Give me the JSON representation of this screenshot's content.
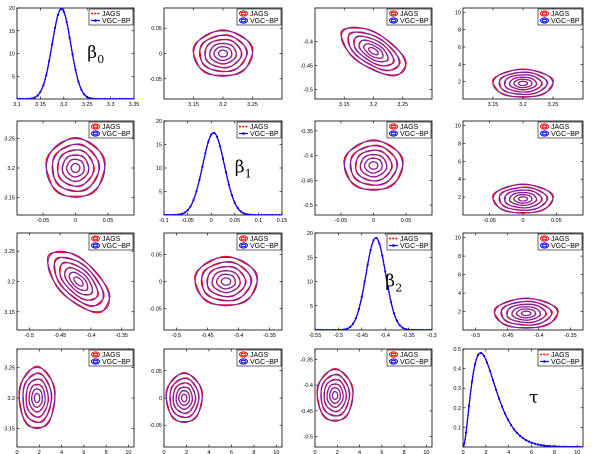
{
  "figure": {
    "legend_entries": [
      "JAGS",
      "VGC−BP"
    ],
    "series_colors": {
      "JAGS": "#ff0000",
      "VGC−BP": "#0000ff",
      "overlap": "#7a1fa8"
    },
    "diag_labels": [
      {
        "base": "β",
        "sub": "0"
      },
      {
        "base": "β",
        "sub": "1"
      },
      {
        "base": "β",
        "sub": "2"
      },
      {
        "base": "τ",
        "sub": ""
      }
    ]
  },
  "chart_data": [
    {
      "row": 0,
      "col": 0,
      "type": "line",
      "diag": true,
      "xticks": [
        "3.1",
        "3.15",
        "3.2",
        "3.25",
        "3.3",
        "3.35"
      ],
      "yticks": [
        "5",
        "10",
        "15",
        "20"
      ],
      "xlim": [
        3.1,
        3.35
      ],
      "ylim": [
        0,
        20
      ],
      "density": {
        "mean": 3.195,
        "sd": 0.02,
        "peak": 19.8
      },
      "series": [
        {
          "name": "JAGS"
        },
        {
          "name": "VGC−BP"
        }
      ]
    },
    {
      "row": 0,
      "col": 1,
      "type": "contour",
      "xticks": [
        "3.15",
        "3.2",
        "3.25"
      ],
      "yticks": [
        "-0.05",
        "0",
        "0.05"
      ],
      "xlim": [
        3.1,
        3.3
      ],
      "ylim": [
        -0.09,
        0.09
      ],
      "center": [
        3.2,
        0.0
      ],
      "spread": [
        0.05,
        0.045
      ],
      "corr": 0.0
    },
    {
      "row": 0,
      "col": 2,
      "type": "contour",
      "xticks": [
        "3.15",
        "3.2",
        "3.25"
      ],
      "yticks": [
        "-0.45",
        "-0.4",
        "-0.5"
      ],
      "xlim": [
        3.1,
        3.3
      ],
      "ylim": [
        -0.52,
        -0.33
      ],
      "center": [
        3.2,
        -0.42
      ],
      "spread": [
        0.055,
        0.05
      ],
      "corr": -0.6
    },
    {
      "row": 0,
      "col": 3,
      "type": "contour",
      "xticks": [
        "3.15",
        "3.2",
        "3.25"
      ],
      "yticks": [
        "2",
        "4",
        "6",
        "8",
        "10"
      ],
      "xlim": [
        3.1,
        3.3
      ],
      "ylim": [
        0,
        10.5
      ],
      "center": [
        3.2,
        1.8
      ],
      "spread": [
        0.05,
        1.6
      ],
      "corr": 0.0
    },
    {
      "row": 1,
      "col": 0,
      "type": "contour",
      "xticks": [
        "-0.05",
        "0",
        "0.05"
      ],
      "yticks": [
        "3.15",
        "3.2",
        "3.25"
      ],
      "xlim": [
        -0.09,
        0.09
      ],
      "ylim": [
        3.12,
        3.28
      ],
      "center": [
        0.0,
        3.2
      ],
      "spread": [
        0.045,
        0.05
      ],
      "corr": 0.0
    },
    {
      "row": 1,
      "col": 1,
      "type": "line",
      "diag": true,
      "xticks": [
        "-0.1",
        "-0.05",
        "0",
        "0.05",
        "0.1",
        "0.15"
      ],
      "yticks": [
        "5",
        "10",
        "15",
        "20"
      ],
      "xlim": [
        -0.1,
        0.15
      ],
      "ylim": [
        0,
        20
      ],
      "density": {
        "mean": 0.005,
        "sd": 0.023,
        "peak": 17.5
      },
      "series": [
        {
          "name": "JAGS"
        },
        {
          "name": "VGC−BP"
        }
      ]
    },
    {
      "row": 1,
      "col": 2,
      "type": "contour",
      "xticks": [
        "-0.05",
        "0",
        "0.05"
      ],
      "yticks": [
        "-0.35",
        "-0.4",
        "-0.45",
        "-0.5"
      ],
      "xlim": [
        -0.09,
        0.09
      ],
      "ylim": [
        -0.52,
        -0.33
      ],
      "center": [
        0.0,
        -0.42
      ],
      "spread": [
        0.045,
        0.05
      ],
      "corr": 0.0
    },
    {
      "row": 1,
      "col": 3,
      "type": "contour",
      "xticks": [
        "-0.05",
        "0",
        "0.05"
      ],
      "yticks": [
        "2",
        "4",
        "6",
        "8",
        "10"
      ],
      "xlim": [
        -0.09,
        0.09
      ],
      "ylim": [
        0,
        10.5
      ],
      "center": [
        0.0,
        1.8
      ],
      "spread": [
        0.045,
        1.6
      ],
      "corr": 0.0
    },
    {
      "row": 2,
      "col": 0,
      "type": "contour",
      "xticks": [
        "-0.5",
        "-0.45",
        "-0.4",
        "-0.35"
      ],
      "yticks": [
        "3.15",
        "3.2",
        "3.25"
      ],
      "xlim": [
        -0.52,
        -0.33
      ],
      "ylim": [
        3.12,
        3.28
      ],
      "center": [
        -0.42,
        3.2
      ],
      "spread": [
        0.05,
        0.05
      ],
      "corr": -0.6
    },
    {
      "row": 2,
      "col": 1,
      "type": "contour",
      "xticks": [
        "-0.5",
        "-0.45",
        "-0.4",
        "-0.35"
      ],
      "yticks": [
        "-0.05",
        "0",
        "0.05"
      ],
      "xlim": [
        -0.52,
        -0.33
      ],
      "ylim": [
        -0.09,
        0.09
      ],
      "center": [
        -0.42,
        0.0
      ],
      "spread": [
        0.05,
        0.045
      ],
      "corr": 0.0
    },
    {
      "row": 2,
      "col": 2,
      "type": "line",
      "diag": true,
      "xticks": [
        "-0.55",
        "-0.5",
        "-0.45",
        "-0.4",
        "-0.35",
        "-0.3"
      ],
      "yticks": [
        "5",
        "10",
        "15",
        "20"
      ],
      "xlim": [
        -0.55,
        -0.3
      ],
      "ylim": [
        0,
        20
      ],
      "density": {
        "mean": -0.42,
        "sd": 0.021,
        "peak": 19
      },
      "series": [
        {
          "name": "JAGS"
        },
        {
          "name": "VGC−BP"
        }
      ]
    },
    {
      "row": 2,
      "col": 3,
      "type": "contour",
      "xticks": [
        "-0.5",
        "-0.45",
        "-0.4",
        "-0.35"
      ],
      "yticks": [
        "2",
        "4",
        "6",
        "8",
        "10"
      ],
      "xlim": [
        -0.52,
        -0.33
      ],
      "ylim": [
        0,
        10.5
      ],
      "center": [
        -0.42,
        1.8
      ],
      "spread": [
        0.05,
        1.6
      ],
      "corr": 0.0
    },
    {
      "row": 3,
      "col": 0,
      "type": "contour",
      "xticks": [
        "0",
        "2",
        "4",
        "6",
        "8",
        "10"
      ],
      "yticks": [
        "3.15",
        "3.2",
        "3.25"
      ],
      "xlim": [
        0,
        10.5
      ],
      "ylim": [
        3.12,
        3.28
      ],
      "center": [
        1.8,
        3.2
      ],
      "spread": [
        1.6,
        0.05
      ],
      "corr": 0.0
    },
    {
      "row": 3,
      "col": 1,
      "type": "contour",
      "xticks": [
        "0",
        "2",
        "4",
        "6",
        "8",
        "10"
      ],
      "yticks": [
        "-0.05",
        "0",
        "0.05"
      ],
      "xlim": [
        0,
        10.5
      ],
      "ylim": [
        -0.09,
        0.09
      ],
      "center": [
        1.8,
        0.0
      ],
      "spread": [
        1.6,
        0.045
      ],
      "corr": 0.0
    },
    {
      "row": 3,
      "col": 2,
      "type": "contour",
      "xticks": [
        "0",
        "2",
        "4",
        "6",
        "8",
        "10"
      ],
      "yticks": [
        "-0.35",
        "-0.4",
        "-0.45",
        "-0.5"
      ],
      "xlim": [
        0,
        10.5
      ],
      "ylim": [
        -0.52,
        -0.33
      ],
      "center": [
        1.8,
        -0.42
      ],
      "spread": [
        1.6,
        0.05
      ],
      "corr": 0.0
    },
    {
      "row": 3,
      "col": 3,
      "type": "line",
      "diag": true,
      "xticks": [
        "0",
        "2",
        "4",
        "6",
        "8",
        "10"
      ],
      "yticks": [
        "0.1",
        "0.2",
        "0.3",
        "0.4",
        "0.5"
      ],
      "xlim": [
        0,
        10.5
      ],
      "ylim": [
        0,
        0.5
      ],
      "density": {
        "gamma_shape": 3,
        "gamma_rate": 1.3,
        "peak": 0.48
      },
      "series": [
        {
          "name": "JAGS"
        },
        {
          "name": "VGC−BP"
        }
      ]
    }
  ]
}
